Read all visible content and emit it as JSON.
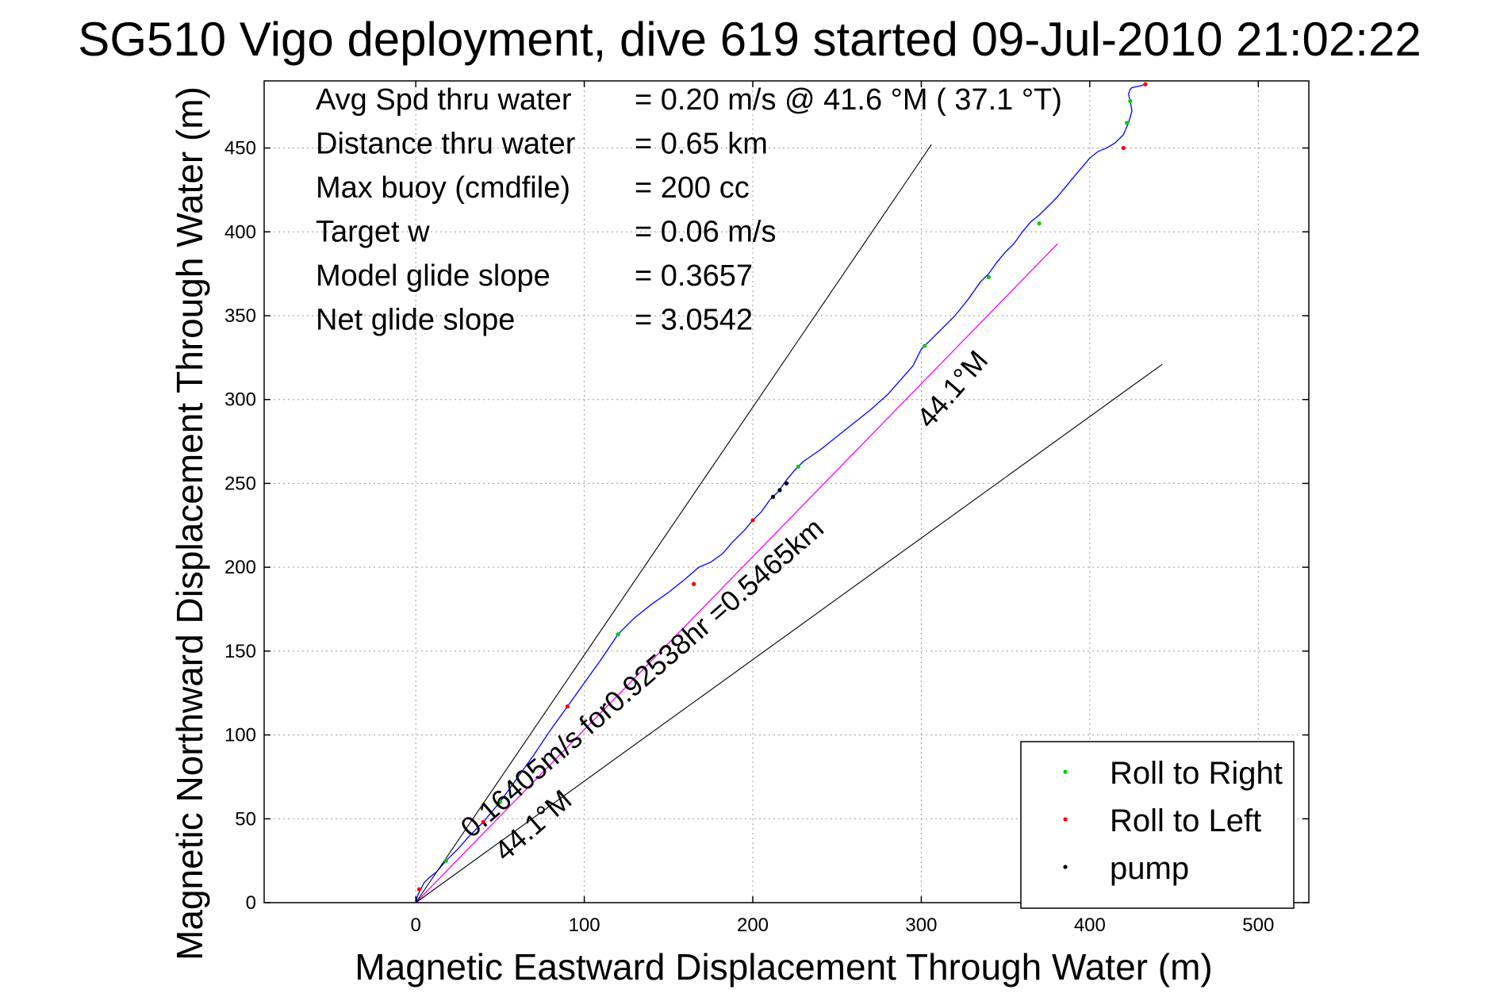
{
  "chart_data": {
    "type": "line",
    "title": "SG510 Vigo deployment, dive 619 started 09-Jul-2010 21:02:22",
    "xlabel": "Magnetic Eastward Displacement Through Water (m)",
    "ylabel": "Magnetic Northward Displacement Through Water (m)",
    "xlim": [
      -90,
      530
    ],
    "ylim": [
      0,
      490
    ],
    "xticks": [
      0,
      100,
      200,
      300,
      400,
      500
    ],
    "yticks": [
      0,
      50,
      100,
      150,
      200,
      250,
      300,
      350,
      400,
      450
    ],
    "grid": true,
    "legend_position": "bottom-right",
    "stats": [
      {
        "label": "Avg Spd thru water",
        "value": "=  0.20 m/s @  41.6 °M ( 37.1 °T)"
      },
      {
        "label": "Distance thru water",
        "value": "=  0.65 km"
      },
      {
        "label": "Max buoy (cmdfile)",
        "value": "= 200 cc"
      },
      {
        "label": "Target w",
        "value": "= 0.06 m/s"
      },
      {
        "label": "Model glide slope",
        "value": "= 0.3657"
      },
      {
        "label": "Net glide slope",
        "value": "= 3.0542"
      }
    ],
    "annotations": [
      {
        "text": "0.16405m/s for0.92538hr =0.5465km",
        "x": 33,
        "y": 38,
        "angle_deg": 41
      },
      {
        "text": "44.1°M",
        "x": 53,
        "y": 24,
        "angle_deg": 41
      },
      {
        "text": "44.1°M",
        "x": 305,
        "y": 282,
        "angle_deg": 49
      }
    ],
    "series": [
      {
        "name": "",
        "role": "track",
        "color": "#0000ff",
        "x": [
          0,
          1,
          3,
          5,
          8,
          12,
          18,
          25,
          32,
          40,
          50,
          60,
          70,
          80,
          90,
          100,
          110,
          120,
          130,
          140,
          150,
          160,
          168,
          175,
          182,
          188,
          195,
          200,
          205,
          210,
          215,
          220,
          225,
          230,
          240,
          250,
          260,
          270,
          280,
          288,
          295,
          300,
          305,
          312,
          320,
          328,
          335,
          340,
          345,
          350,
          355,
          360,
          365,
          370,
          375,
          380,
          385,
          390,
          395,
          400,
          405,
          410,
          415,
          420,
          423,
          425,
          424,
          423,
          424,
          425,
          430,
          433
        ],
        "y": [
          0,
          4,
          8,
          12,
          15,
          18,
          25,
          32,
          40,
          48,
          60,
          74,
          88,
          103,
          117,
          131,
          145,
          160,
          170,
          178,
          185,
          193,
          200,
          203,
          208,
          215,
          222,
          228,
          233,
          240,
          245,
          252,
          258,
          263,
          270,
          278,
          286,
          294,
          303,
          312,
          320,
          330,
          335,
          342,
          350,
          360,
          370,
          375,
          382,
          388,
          393,
          400,
          406,
          410,
          415,
          420,
          426,
          432,
          438,
          444,
          448,
          450,
          453,
          458,
          465,
          472,
          478,
          482,
          485,
          486,
          487,
          488
        ]
      },
      {
        "name": "",
        "role": "fit",
        "color": "#ff00ff",
        "x": [
          0,
          381
        ],
        "y": [
          0,
          393
        ]
      },
      {
        "name": "",
        "role": "bound",
        "color": "#000000",
        "x": [
          0,
          306
        ],
        "y": [
          0,
          452
        ]
      },
      {
        "name": "",
        "role": "bound",
        "color": "#000000",
        "x": [
          0,
          443
        ],
        "y": [
          0,
          321
        ]
      },
      {
        "name": "Roll to Right",
        "role": "markers",
        "color": "#00cc00",
        "x": [
          18,
          50,
          120,
          165,
          227,
          302,
          340,
          370,
          422,
          424
        ],
        "y": [
          25,
          60,
          160,
          190,
          260,
          332,
          373,
          405,
          465,
          478
        ]
      },
      {
        "name": "Roll to Left",
        "role": "markers",
        "color": "#ff0000",
        "x": [
          2,
          40,
          90,
          165,
          200,
          420,
          433
        ],
        "y": [
          8,
          48,
          117,
          190,
          228,
          450,
          488
        ]
      },
      {
        "name": "pump",
        "role": "markers",
        "color": "#000000",
        "x": [
          212,
          216,
          220
        ],
        "y": [
          242,
          246,
          250
        ]
      }
    ]
  }
}
